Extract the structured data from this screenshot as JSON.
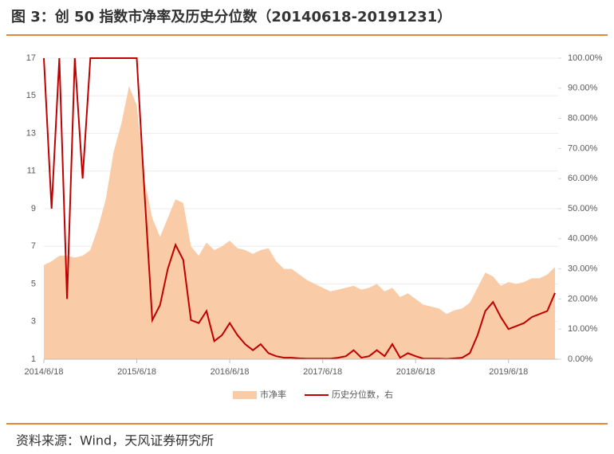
{
  "chart_data": {
    "type": "area_line",
    "title": "图 3：创 50 指数市净率及历史分位数（20140618-20191231）",
    "source": "资料来源：Wind，天风证券研究所",
    "x": [
      "2014/6/18",
      "2014/7/18",
      "2014/8/18",
      "2014/9/18",
      "2014/10/18",
      "2014/11/18",
      "2014/12/18",
      "2015/1/18",
      "2015/2/18",
      "2015/3/18",
      "2015/4/18",
      "2015/5/18",
      "2015/6/18",
      "2015/7/18",
      "2015/8/18",
      "2015/9/18",
      "2015/10/18",
      "2015/11/18",
      "2015/12/18",
      "2016/1/18",
      "2016/2/18",
      "2016/3/18",
      "2016/4/18",
      "2016/5/18",
      "2016/6/18",
      "2016/7/18",
      "2016/8/18",
      "2016/9/18",
      "2016/10/18",
      "2016/11/18",
      "2016/12/18",
      "2017/1/18",
      "2017/2/18",
      "2017/3/18",
      "2017/4/18",
      "2017/5/18",
      "2017/6/18",
      "2017/7/18",
      "2017/8/18",
      "2017/9/18",
      "2017/10/18",
      "2017/11/18",
      "2017/12/18",
      "2018/1/18",
      "2018/2/18",
      "2018/3/18",
      "2018/4/18",
      "2018/5/18",
      "2018/6/18",
      "2018/7/18",
      "2018/8/18",
      "2018/9/18",
      "2018/10/18",
      "2018/11/18",
      "2018/12/18",
      "2019/1/18",
      "2019/2/18",
      "2019/3/18",
      "2019/4/18",
      "2019/5/18",
      "2019/6/18",
      "2019/7/18",
      "2019/8/18",
      "2019/9/18",
      "2019/10/18",
      "2019/11/18",
      "2019/12/18"
    ],
    "xticks": [
      "2014/6/18",
      "2015/6/18",
      "2016/6/18",
      "2017/6/18",
      "2018/6/18",
      "2019/6/18"
    ],
    "series": [
      {
        "name": "市净率",
        "color": "#f9cba7",
        "axis": "y",
        "values": [
          6.0,
          6.2,
          6.5,
          6.5,
          6.4,
          6.5,
          6.8,
          8.0,
          9.5,
          12.0,
          13.5,
          15.5,
          14.5,
          10.5,
          8.5,
          7.5,
          8.5,
          9.5,
          9.3,
          7.0,
          6.5,
          7.2,
          6.8,
          7.0,
          7.3,
          6.9,
          6.8,
          6.6,
          6.8,
          6.9,
          6.2,
          5.8,
          5.8,
          5.5,
          5.2,
          5.0,
          4.8,
          4.6,
          4.7,
          4.8,
          4.9,
          4.7,
          4.8,
          5.0,
          4.6,
          4.8,
          4.3,
          4.5,
          4.2,
          3.9,
          3.8,
          3.7,
          3.4,
          3.6,
          3.7,
          4.0,
          4.8,
          5.6,
          5.4,
          4.9,
          5.1,
          5.0,
          5.1,
          5.3,
          5.3,
          5.5,
          5.9
        ]
      },
      {
        "name": "历史分位数，右",
        "color": "#c00000",
        "axis": "y2",
        "values": [
          100,
          50,
          100,
          20,
          100,
          60,
          100,
          100,
          100,
          100,
          100,
          100,
          100,
          55,
          13,
          18,
          30,
          38,
          33,
          13,
          12,
          16,
          6,
          8,
          12,
          8,
          5,
          3,
          5,
          2,
          1,
          0.5,
          0.5,
          0.3,
          0.2,
          0.2,
          0.2,
          0.2,
          0.5,
          1,
          3,
          0.5,
          1,
          3,
          1,
          5,
          0.5,
          2,
          1,
          0.2,
          0.2,
          0.2,
          0.1,
          0.3,
          0.5,
          2,
          8,
          16,
          19,
          14,
          10,
          11,
          12,
          14,
          15,
          16,
          22
        ]
      }
    ],
    "ylim": [
      1,
      17
    ],
    "yticks": [
      1,
      3,
      5,
      7,
      9,
      11,
      13,
      15,
      17
    ],
    "y2lim": [
      0,
      100
    ],
    "y2ticks": [
      {
        "value": 0,
        "label": "0.00%"
      },
      {
        "value": 10,
        "label": "10.00%"
      },
      {
        "value": 20,
        "label": "20.00%"
      },
      {
        "value": 30,
        "label": "30.00%"
      },
      {
        "value": 40,
        "label": "40.00%"
      },
      {
        "value": 50,
        "label": "50.00%"
      },
      {
        "value": 60,
        "label": "60.00%"
      },
      {
        "value": 70,
        "label": "70.00%"
      },
      {
        "value": 80,
        "label": "80.00%"
      },
      {
        "value": 90,
        "label": "90.00%"
      },
      {
        "value": 100,
        "label": "100.00%"
      }
    ],
    "legend": "bottom"
  }
}
